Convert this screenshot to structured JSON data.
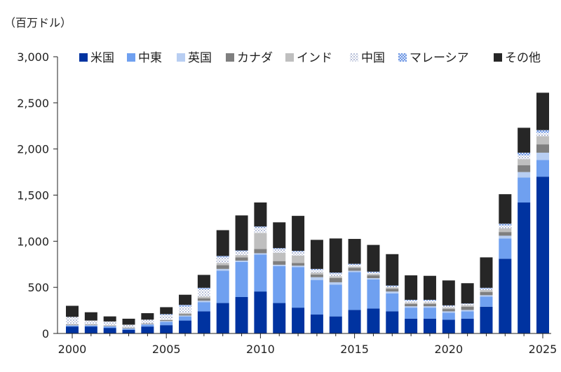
{
  "chart_data": {
    "type": "bar",
    "stacked": true,
    "unit_label": "（百万ドル）",
    "title": "",
    "xlabel": "",
    "ylabel": "",
    "ylim": [
      0,
      3000
    ],
    "yticks": [
      0,
      500,
      1000,
      1500,
      2000,
      2500,
      3000
    ],
    "ytick_labels": [
      "0",
      "500",
      "1,000",
      "1,500",
      "2,000",
      "2,500",
      "3,000"
    ],
    "x": [
      2000,
      2001,
      2002,
      2003,
      2004,
      2005,
      2006,
      2007,
      2008,
      2009,
      2010,
      2011,
      2012,
      2013,
      2014,
      2015,
      2016,
      2017,
      2018,
      2019,
      2020,
      2021,
      2022,
      2023,
      2024,
      2025
    ],
    "xtick_labels": [
      "2000",
      "2005",
      "2010",
      "2015",
      "2020",
      "2025"
    ],
    "xtick_values": [
      2000,
      2005,
      2010,
      2015,
      2020,
      2025
    ],
    "grid": false,
    "legend_position": "top",
    "series": [
      {
        "name": "米国",
        "color": "#0033a0",
        "pattern": "solid",
        "values": [
          75,
          75,
          60,
          40,
          75,
          90,
          140,
          240,
          330,
          395,
          455,
          330,
          280,
          205,
          185,
          255,
          270,
          240,
          160,
          160,
          150,
          160,
          290,
          810,
          1420,
          1700
        ]
      },
      {
        "name": "中東",
        "color": "#6fa0f0",
        "pattern": "solid",
        "values": [
          10,
          10,
          15,
          10,
          20,
          35,
          45,
          100,
          350,
          380,
          400,
          400,
          440,
          375,
          345,
          410,
          315,
          195,
          120,
          120,
          75,
          80,
          110,
          220,
          270,
          180
        ]
      },
      {
        "name": "英国",
        "color": "#b8cef2",
        "pattern": "solid",
        "values": [
          5,
          5,
          5,
          5,
          5,
          10,
          10,
          15,
          20,
          15,
          15,
          15,
          15,
          30,
          25,
          15,
          15,
          20,
          15,
          15,
          15,
          15,
          15,
          30,
          60,
          80
        ]
      },
      {
        "name": "カナダ",
        "color": "#7f7f7f",
        "pattern": "solid",
        "values": [
          5,
          5,
          5,
          5,
          5,
          10,
          15,
          25,
          40,
          35,
          45,
          40,
          30,
          30,
          45,
          30,
          30,
          30,
          25,
          25,
          25,
          35,
          35,
          40,
          75,
          90
        ]
      },
      {
        "name": "インド",
        "color": "#bfbfbf",
        "pattern": "solid",
        "values": [
          5,
          5,
          5,
          5,
          5,
          5,
          10,
          20,
          25,
          25,
          175,
          90,
          80,
          20,
          20,
          15,
          15,
          15,
          15,
          15,
          15,
          15,
          20,
          40,
          65,
          90
        ]
      },
      {
        "name": "中国",
        "color": "#9aa6c8",
        "pattern": "dots",
        "values": [
          80,
          40,
          40,
          30,
          40,
          50,
          70,
          80,
          60,
          40,
          60,
          40,
          40,
          30,
          30,
          20,
          15,
          10,
          20,
          20,
          20,
          15,
          15,
          30,
          40,
          35
        ]
      },
      {
        "name": "マレーシア",
        "color": "#8fb1ec",
        "pattern": "checker",
        "values": [
          0,
          0,
          0,
          0,
          0,
          10,
          20,
          15,
          15,
          10,
          10,
          10,
          10,
          10,
          10,
          10,
          10,
          10,
          10,
          10,
          5,
          5,
          10,
          20,
          30,
          30
        ]
      },
      {
        "name": "その他",
        "color": "#262626",
        "pattern": "solid",
        "values": [
          120,
          90,
          55,
          65,
          70,
          75,
          110,
          140,
          280,
          380,
          260,
          280,
          380,
          315,
          370,
          270,
          290,
          340,
          265,
          260,
          270,
          220,
          330,
          320,
          270,
          405
        ]
      }
    ]
  }
}
